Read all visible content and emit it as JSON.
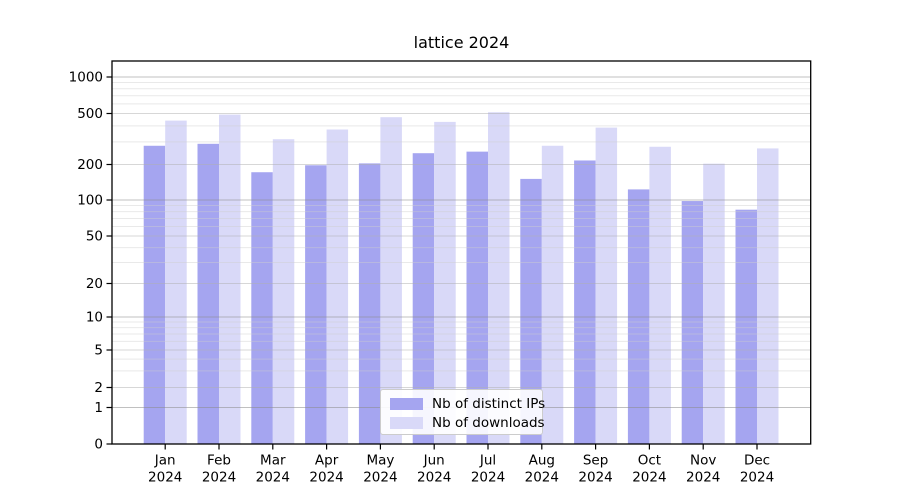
{
  "chart_data": {
    "type": "bar",
    "title": "lattice 2024",
    "categories": [
      "Jan",
      "Feb",
      "Mar",
      "Apr",
      "May",
      "Jun",
      "Jul",
      "Aug",
      "Sep",
      "Oct",
      "Nov",
      "Dec"
    ],
    "category_year": "2024",
    "series": [
      {
        "name": "Nb of distinct IPs",
        "color": "#a5a5f0",
        "values": [
          280,
          290,
          172,
          197,
          204,
          245,
          252,
          151,
          215,
          123,
          98,
          83
        ]
      },
      {
        "name": "Nb of downloads",
        "color": "#d9d9f8",
        "values": [
          440,
          490,
          315,
          375,
          468,
          430,
          512,
          280,
          388,
          275,
          203,
          267
        ]
      }
    ],
    "yscale": "symlog",
    "yticks": [
      0,
      1,
      2,
      5,
      10,
      20,
      50,
      100,
      200,
      500,
      1000
    ],
    "ylim": [
      0,
      1300
    ],
    "xlabel": "",
    "ylabel": "",
    "grid": true,
    "legend_position": "lower center",
    "colors": {
      "axis_text": "#000000",
      "spine": "#000000",
      "grid_decade": "#8c8c8c",
      "grid_major": "#b0b0b0",
      "grid_minor": "#cfcfcf",
      "background": "#ffffff"
    }
  }
}
